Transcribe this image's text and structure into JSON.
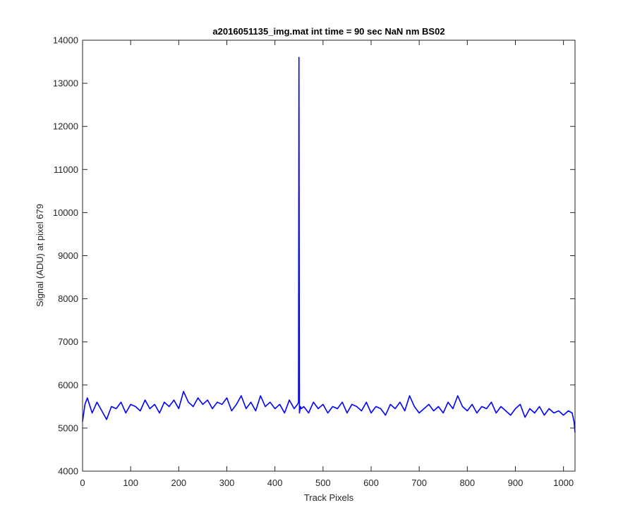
{
  "chart_data": {
    "type": "line",
    "title": "a2016051135_img.mat int time = 90 sec  NaN nm BS02",
    "xlabel": "Track Pixels",
    "ylabel": "Signal (ADU) at pixel 679",
    "xlim": [
      0,
      1024
    ],
    "ylim": [
      4000,
      14000
    ],
    "xticks": [
      0,
      100,
      200,
      300,
      400,
      500,
      600,
      700,
      800,
      900,
      1000
    ],
    "yticks": [
      4000,
      5000,
      6000,
      7000,
      8000,
      9000,
      10000,
      11000,
      12000,
      13000,
      14000
    ],
    "grid": false,
    "series": [
      {
        "color": "#0000ff",
        "x": [
          0,
          5,
          10,
          20,
          30,
          40,
          50,
          60,
          70,
          80,
          90,
          100,
          110,
          120,
          130,
          140,
          150,
          160,
          170,
          180,
          190,
          200,
          210,
          220,
          230,
          240,
          250,
          260,
          270,
          280,
          290,
          300,
          310,
          320,
          330,
          340,
          350,
          360,
          370,
          380,
          390,
          400,
          410,
          420,
          430,
          440,
          447,
          449,
          450,
          451,
          453,
          455,
          460,
          470,
          480,
          490,
          500,
          510,
          520,
          530,
          540,
          550,
          560,
          570,
          580,
          590,
          600,
          610,
          620,
          630,
          640,
          650,
          660,
          670,
          680,
          690,
          700,
          710,
          720,
          730,
          740,
          750,
          760,
          770,
          780,
          790,
          800,
          810,
          820,
          830,
          840,
          850,
          860,
          870,
          880,
          890,
          900,
          910,
          920,
          930,
          940,
          950,
          960,
          970,
          980,
          990,
          1000,
          1010,
          1018,
          1022,
          1024
        ],
        "y": [
          5150,
          5550,
          5700,
          5350,
          5600,
          5400,
          5200,
          5500,
          5450,
          5600,
          5350,
          5550,
          5500,
          5400,
          5650,
          5450,
          5550,
          5350,
          5600,
          5500,
          5650,
          5450,
          5850,
          5600,
          5500,
          5700,
          5550,
          5650,
          5450,
          5600,
          5550,
          5700,
          5400,
          5550,
          5750,
          5450,
          5600,
          5400,
          5750,
          5500,
          5600,
          5450,
          5550,
          5350,
          5650,
          5450,
          5550,
          5600,
          13600,
          5350,
          5500,
          5450,
          5500,
          5350,
          5600,
          5450,
          5550,
          5350,
          5500,
          5450,
          5600,
          5350,
          5550,
          5500,
          5400,
          5600,
          5350,
          5500,
          5450,
          5300,
          5550,
          5450,
          5600,
          5400,
          5750,
          5500,
          5350,
          5450,
          5550,
          5400,
          5500,
          5350,
          5600,
          5450,
          5750,
          5500,
          5400,
          5550,
          5350,
          5500,
          5450,
          5600,
          5350,
          5500,
          5400,
          5300,
          5450,
          5550,
          5250,
          5450,
          5350,
          5500,
          5300,
          5450,
          5350,
          5400,
          5300,
          5400,
          5350,
          5150,
          4900
        ]
      }
    ]
  }
}
